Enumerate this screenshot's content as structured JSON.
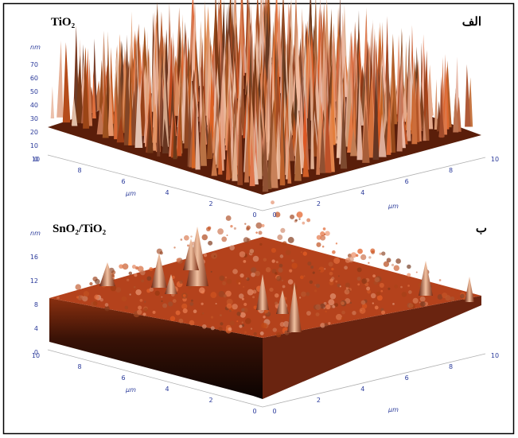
{
  "panels": [
    {
      "title": "TiO₂",
      "label": "الف",
      "z_unit": "nm",
      "z_ticks": [
        0,
        10,
        20,
        30,
        40,
        50,
        60,
        70
      ],
      "left_unit": "μm",
      "left_ticks": [
        10,
        8,
        6,
        4,
        2,
        0
      ],
      "right_unit": "μm",
      "right_ticks": [
        0,
        2,
        4,
        6,
        8,
        10
      ]
    },
    {
      "title": "SnO₂/TiO₂",
      "label": "ب",
      "z_unit": "nm",
      "z_ticks": [
        0,
        4,
        8,
        12,
        16
      ],
      "left_unit": "μm",
      "left_ticks": [
        10,
        8,
        6,
        4,
        2,
        0
      ],
      "right_unit": "μm",
      "right_ticks": [
        0,
        2,
        4,
        6,
        8,
        10
      ]
    }
  ]
}
